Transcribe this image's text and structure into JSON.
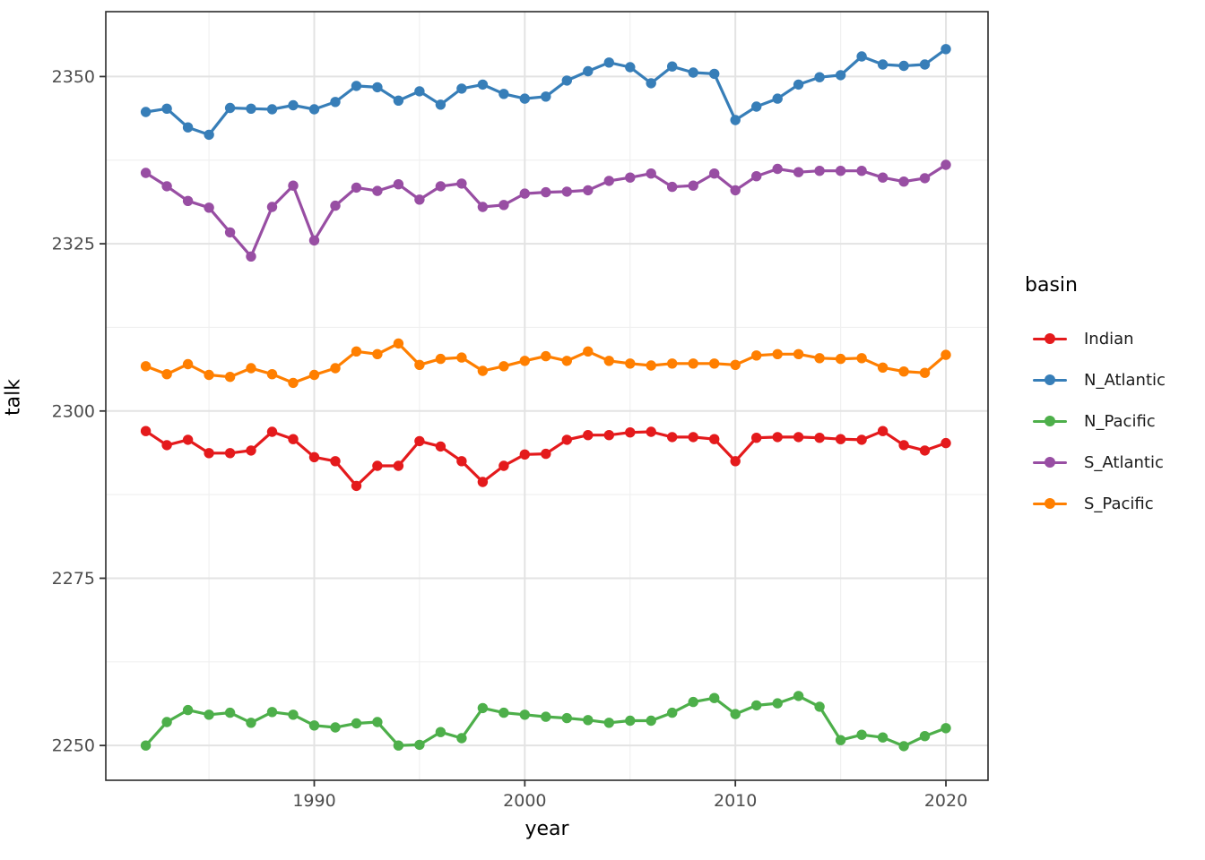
{
  "chart_data": {
    "type": "line",
    "title": "",
    "xlabel": "year",
    "ylabel": "talk",
    "legend_title": "basin",
    "legend_position": "right",
    "grid": true,
    "xlim": [
      1980.1,
      2022.0
    ],
    "ylim": [
      2244.8,
      2359.7
    ],
    "x_ticks": [
      1990,
      2000,
      2010,
      2020
    ],
    "x_minor_ticks": [
      1985,
      1995,
      2005,
      2015
    ],
    "y_ticks": [
      2250,
      2275,
      2300,
      2325,
      2350
    ],
    "y_minor_ticks": [
      2262.5,
      2287.5,
      2312.5,
      2337.5
    ],
    "x": [
      1982,
      1983,
      1984,
      1985,
      1986,
      1987,
      1988,
      1989,
      1990,
      1991,
      1992,
      1993,
      1994,
      1995,
      1996,
      1997,
      1998,
      1999,
      2000,
      2001,
      2002,
      2003,
      2004,
      2005,
      2006,
      2007,
      2008,
      2009,
      2010,
      2011,
      2012,
      2013,
      2014,
      2015,
      2016,
      2017,
      2018,
      2019,
      2020
    ],
    "series": [
      {
        "name": "Indian",
        "color": "#E41A1C",
        "values": [
          2297.0,
          2294.9,
          2295.7,
          2293.7,
          2293.7,
          2294.1,
          2296.9,
          2295.8,
          2293.1,
          2292.5,
          2288.8,
          2291.8,
          2291.8,
          2295.5,
          2294.7,
          2292.5,
          2289.4,
          2291.8,
          2293.5,
          2293.6,
          2295.7,
          2296.4,
          2296.4,
          2296.8,
          2296.9,
          2296.1,
          2296.1,
          2295.8,
          2292.5,
          2296.0,
          2296.1,
          2296.1,
          2296.0,
          2295.8,
          2295.7,
          2297.0,
          2294.9,
          2294.1,
          2295.2
        ]
      },
      {
        "name": "N_Atlantic",
        "color": "#377EB8",
        "values": [
          2344.7,
          2345.2,
          2342.4,
          2341.3,
          2345.3,
          2345.2,
          2345.1,
          2345.7,
          2345.1,
          2346.2,
          2348.6,
          2348.4,
          2346.4,
          2347.8,
          2345.8,
          2348.2,
          2348.8,
          2347.4,
          2346.7,
          2347.0,
          2349.4,
          2350.8,
          2352.1,
          2351.4,
          2349.0,
          2351.5,
          2350.6,
          2350.4,
          2343.5,
          2345.5,
          2346.7,
          2348.8,
          2349.9,
          2350.2,
          2353.0,
          2351.8,
          2351.6,
          2351.8,
          2354.1
        ]
      },
      {
        "name": "N_Pacific",
        "color": "#4DAF4A",
        "values": [
          2250.0,
          2253.5,
          2255.3,
          2254.6,
          2254.9,
          2253.4,
          2255.0,
          2254.6,
          2253.0,
          2252.7,
          2253.3,
          2253.5,
          2250.0,
          2250.1,
          2252.0,
          2251.1,
          2255.6,
          2254.9,
          2254.6,
          2254.3,
          2254.1,
          2253.8,
          2253.4,
          2253.7,
          2253.7,
          2254.9,
          2256.5,
          2257.1,
          2254.7,
          2256.0,
          2256.3,
          2257.4,
          2255.8,
          2250.8,
          2251.6,
          2251.2,
          2249.9,
          2251.4,
          2252.6
        ]
      },
      {
        "name": "S_Atlantic",
        "color": "#984EA3",
        "values": [
          2335.6,
          2333.6,
          2331.4,
          2330.4,
          2326.7,
          2323.1,
          2330.5,
          2333.7,
          2325.5,
          2330.7,
          2333.4,
          2332.9,
          2333.9,
          2331.6,
          2333.6,
          2334.0,
          2330.5,
          2330.8,
          2332.5,
          2332.7,
          2332.8,
          2333.0,
          2334.4,
          2334.9,
          2335.5,
          2333.5,
          2333.7,
          2335.5,
          2333.0,
          2335.1,
          2336.2,
          2335.7,
          2335.9,
          2335.9,
          2335.9,
          2334.9,
          2334.3,
          2334.8,
          2336.8
        ]
      },
      {
        "name": "S_Pacific",
        "color": "#FF7F00",
        "values": [
          2306.7,
          2305.5,
          2307.0,
          2305.4,
          2305.1,
          2306.4,
          2305.5,
          2304.2,
          2305.4,
          2306.4,
          2308.9,
          2308.5,
          2310.1,
          2306.9,
          2307.8,
          2308.0,
          2306.0,
          2306.7,
          2307.5,
          2308.2,
          2307.5,
          2308.9,
          2307.5,
          2307.1,
          2306.8,
          2307.1,
          2307.1,
          2307.1,
          2306.9,
          2308.3,
          2308.5,
          2308.5,
          2307.9,
          2307.8,
          2307.9,
          2306.5,
          2305.9,
          2305.7,
          2308.4
        ]
      }
    ],
    "style": {
      "panel_border_color": "#2b2b2b",
      "grid_major_color": "#e3e3e3",
      "grid_minor_color": "#f0f0f0",
      "tick_color": "#333333",
      "tick_label_color": "#4d4d4d",
      "background": "#ffffff"
    }
  }
}
